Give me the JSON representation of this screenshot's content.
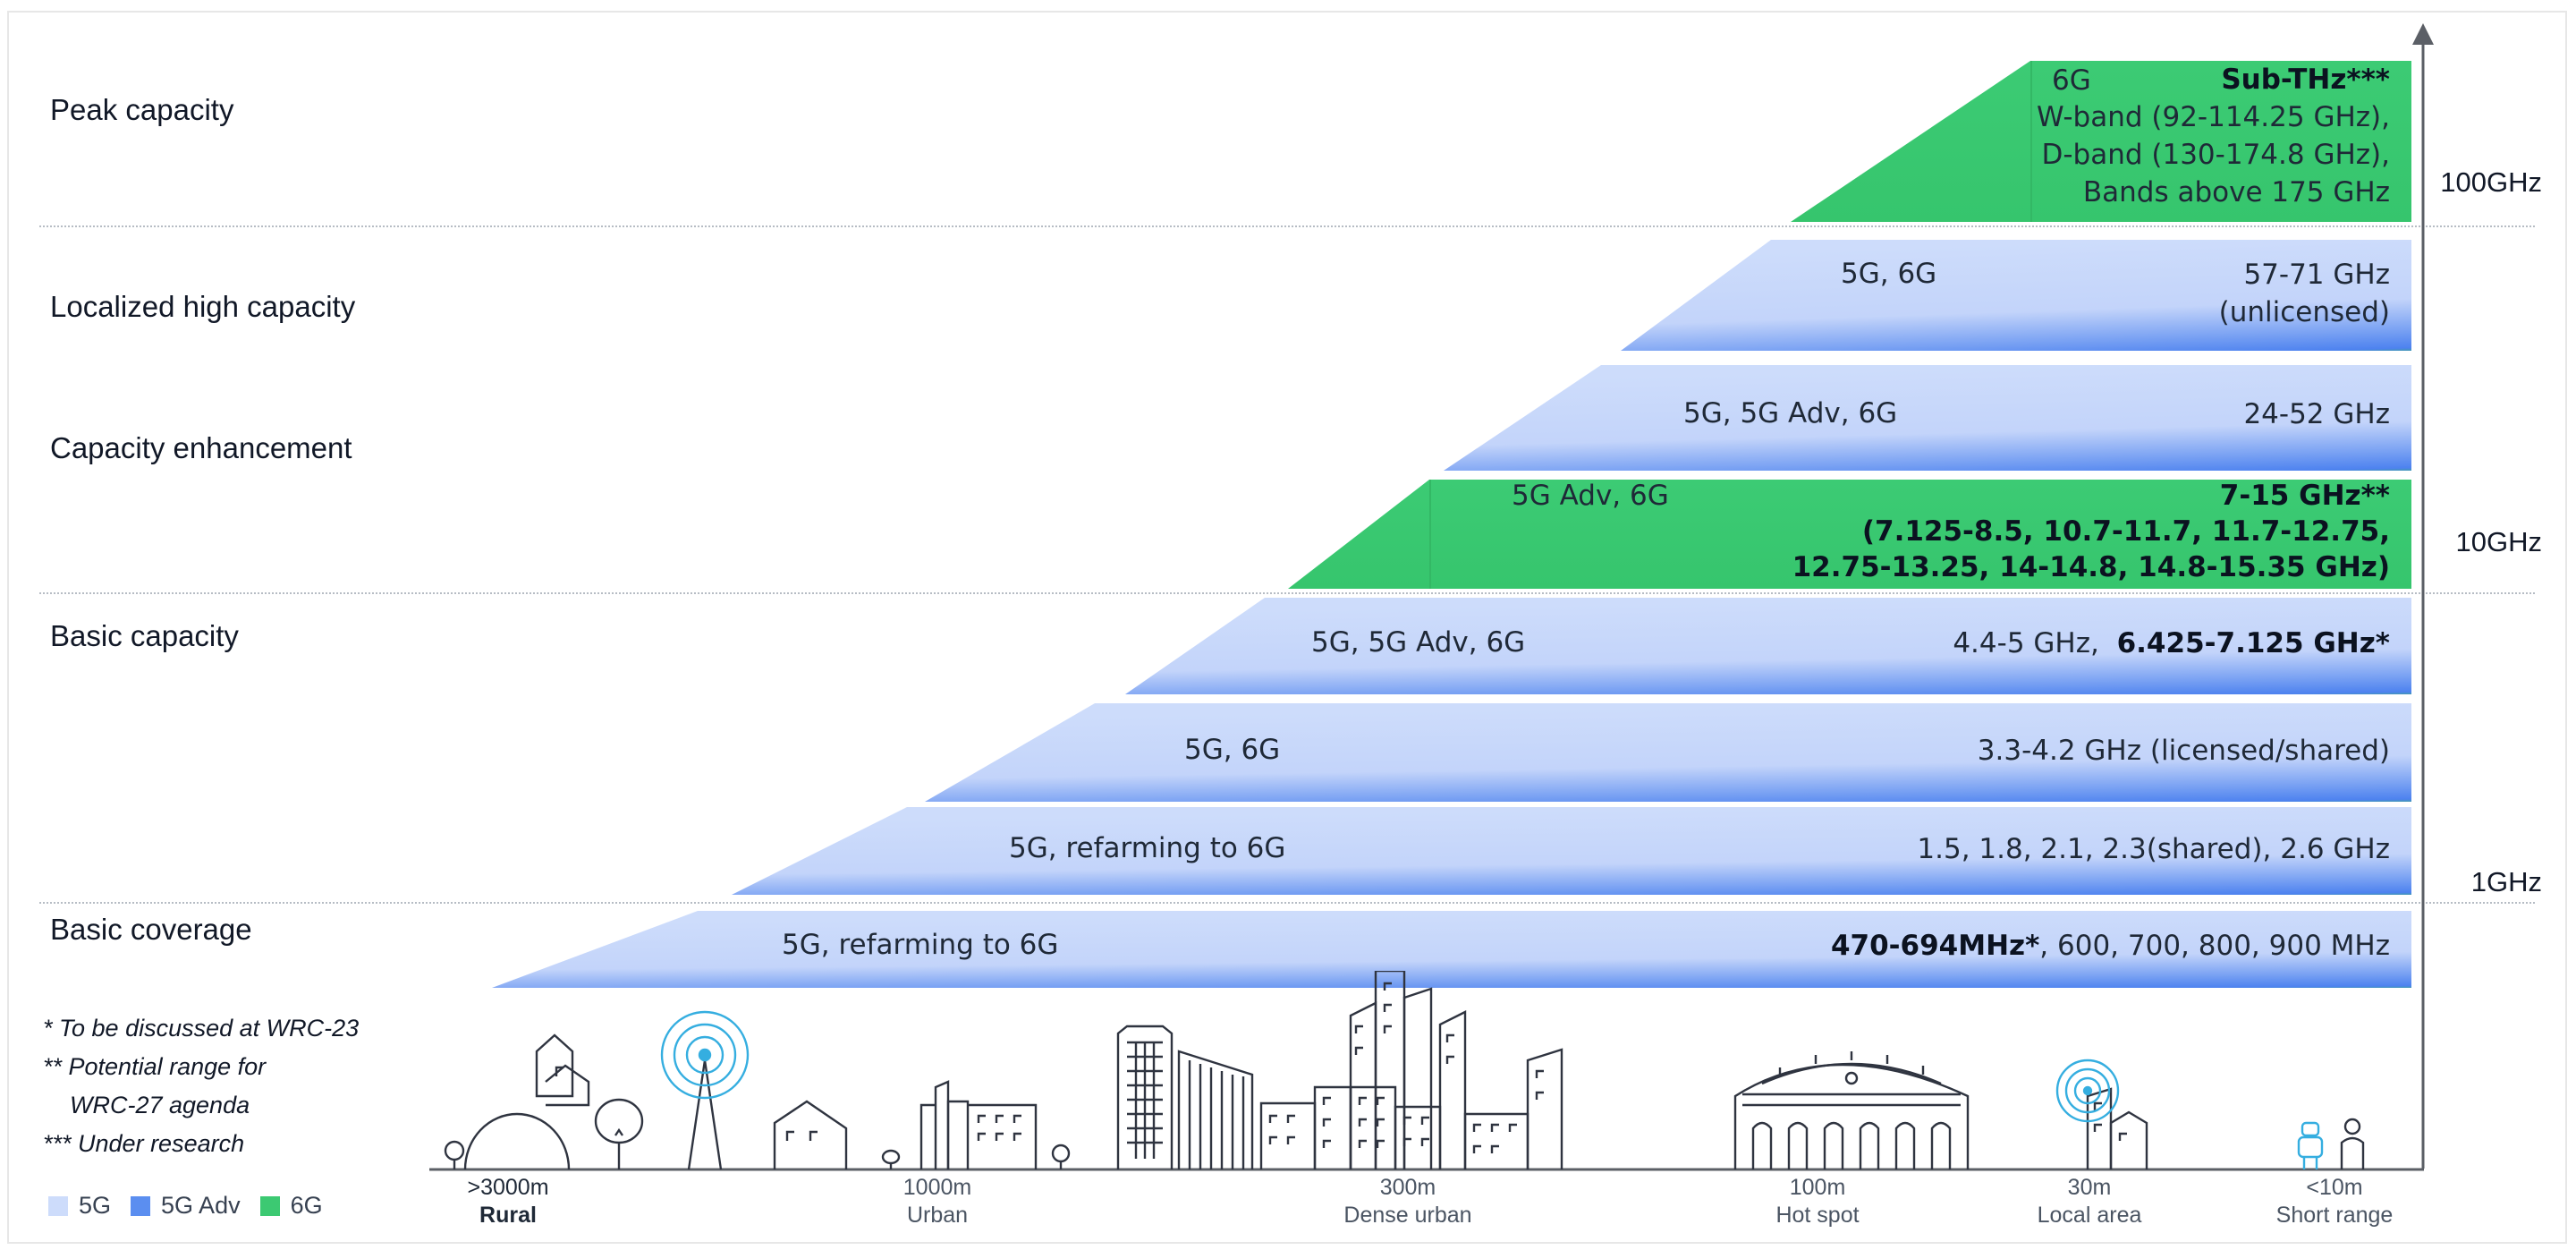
{
  "categories": [
    "Peak capacity",
    "Localized high capacity",
    "Capacity enhancement",
    "Basic capacity",
    "Basic coverage"
  ],
  "frequency_labels": [
    "100GHz",
    "10GHz",
    "1GHz"
  ],
  "bands": [
    {
      "tech": "6G",
      "spec_bold": "Sub-THz***",
      "spec_lines": [
        "W-band (92-114.25 GHz),",
        "D-band (130-174.8 GHz),",
        "Bands above 175 GHz"
      ],
      "generation": "6G"
    },
    {
      "tech": "5G, 6G",
      "spec_lines": [
        "57-71 GHz",
        "(unlicensed)"
      ],
      "generation": "5G"
    },
    {
      "tech": "5G, 5G Adv, 6G",
      "spec_lines": [
        "24-52 GHz"
      ],
      "generation": "5G"
    },
    {
      "tech": "5G Adv, 6G",
      "spec_bold_lines": [
        "7-15 GHz**",
        "(7.125-8.5, 10.7-11.7, 11.7-12.75,",
        "12.75-13.25, 14-14.8, 14.8-15.35 GHz)"
      ],
      "generation": "6G"
    },
    {
      "tech": "5G, 5G Adv, 6G",
      "spec_prefix": "4.4-5 GHz,",
      "spec_bold": "6.425-7.125 GHz*",
      "generation": "5G"
    },
    {
      "tech": "5G, 6G",
      "spec_lines": [
        "3.3-4.2 GHz (licensed/shared)"
      ],
      "generation": "5G"
    },
    {
      "tech": "5G, refarming to 6G",
      "spec_lines": [
        "1.5, 1.8, 2.1, 2.3(shared), 2.6 GHz"
      ],
      "generation": "5G"
    },
    {
      "tech": "5G, refarming to 6G",
      "spec_bold": "470-694MHz*",
      "spec_suffix": ", 600, 700, 800, 900 MHz",
      "generation": "5G"
    }
  ],
  "footnotes": [
    "* To be discussed at WRC-23",
    "** Potential range for",
    "WRC-27 agenda",
    "*** Under research"
  ],
  "legend": [
    {
      "label": "5G",
      "color": "#cddcfb"
    },
    {
      "label": "5G Adv",
      "color": "#5b8ef0"
    },
    {
      "label": "6G",
      "color": "#3cc972"
    }
  ],
  "distance_axis": [
    {
      "distance": ">3000m",
      "name": "Rural"
    },
    {
      "distance": "1000m",
      "name": "Urban"
    },
    {
      "distance": "300m",
      "name": "Dense urban"
    },
    {
      "distance": "100m",
      "name": "Hot spot"
    },
    {
      "distance": "30m",
      "name": "Local area"
    },
    {
      "distance": "<10m",
      "name": "Short range"
    }
  ],
  "colors": {
    "light_5g": "#cddcfb",
    "blue_5g_adv": "#3f77ee",
    "green_6g": "#3cc972",
    "axis": "#5b5f66",
    "icon_blue": "#35aee0"
  }
}
